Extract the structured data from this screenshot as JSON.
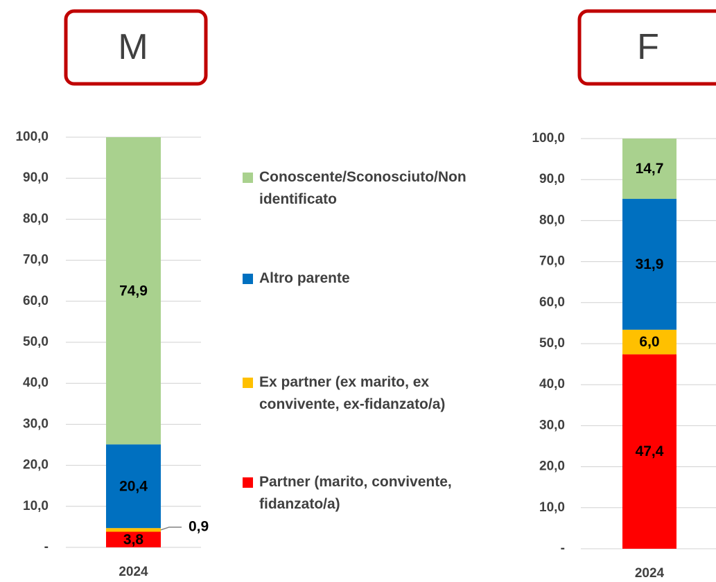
{
  "chart_data": [
    {
      "type": "stacked_bar",
      "title": "M",
      "categories": [
        "2024"
      ],
      "ylim": [
        0,
        100
      ],
      "yticks": [
        {
          "value": 0,
          "label": "-"
        },
        {
          "value": 10,
          "label": "10,0"
        },
        {
          "value": 20,
          "label": "20,0"
        },
        {
          "value": 30,
          "label": "30,0"
        },
        {
          "value": 40,
          "label": "40,0"
        },
        {
          "value": 50,
          "label": "50,0"
        },
        {
          "value": 60,
          "label": "60,0"
        },
        {
          "value": 70,
          "label": "70,0"
        },
        {
          "value": 80,
          "label": "80,0"
        },
        {
          "value": 90,
          "label": "90,0"
        },
        {
          "value": 100,
          "label": "100,0"
        }
      ],
      "grid": true,
      "series": [
        {
          "name": "Partner (marito, convivente, fidanzato/a)",
          "color": "#ff0000",
          "values": [
            3.8
          ],
          "value_labels": [
            "3,8"
          ]
        },
        {
          "name": "Ex partner (ex marito, ex convivente, ex-fidanzato/a)",
          "color": "#ffc000",
          "values": [
            0.9
          ],
          "value_labels": [
            "0,9"
          ]
        },
        {
          "name": "Altro parente",
          "color": "#0070c0",
          "values": [
            20.4
          ],
          "value_labels": [
            "20,4"
          ]
        },
        {
          "name": "Conoscente/Sconosciuto/Non identificato",
          "color": "#a9d18e",
          "values": [
            74.9
          ],
          "value_labels": [
            "74,9"
          ]
        }
      ]
    },
    {
      "type": "stacked_bar",
      "title": "F",
      "categories": [
        "2024"
      ],
      "ylim": [
        0,
        100
      ],
      "yticks": [
        {
          "value": 0,
          "label": "-"
        },
        {
          "value": 10,
          "label": "10,0"
        },
        {
          "value": 20,
          "label": "20,0"
        },
        {
          "value": 30,
          "label": "30,0"
        },
        {
          "value": 40,
          "label": "40,0"
        },
        {
          "value": 50,
          "label": "50,0"
        },
        {
          "value": 60,
          "label": "60,0"
        },
        {
          "value": 70,
          "label": "70,0"
        },
        {
          "value": 80,
          "label": "80,0"
        },
        {
          "value": 90,
          "label": "90,0"
        },
        {
          "value": 100,
          "label": "100,0"
        }
      ],
      "grid": true,
      "series": [
        {
          "color": "#ff0000",
          "values": [
            47.4
          ],
          "value_labels": [
            "47,4"
          ]
        },
        {
          "color": "#ffc000",
          "values": [
            6.0
          ],
          "value_labels": [
            "6,0"
          ]
        },
        {
          "color": "#0070c0",
          "values": [
            31.9
          ],
          "value_labels": [
            "31,9"
          ]
        },
        {
          "color": "#a9d18e",
          "values": [
            14.7
          ],
          "value_labels": [
            "14,7"
          ]
        }
      ]
    }
  ]
}
